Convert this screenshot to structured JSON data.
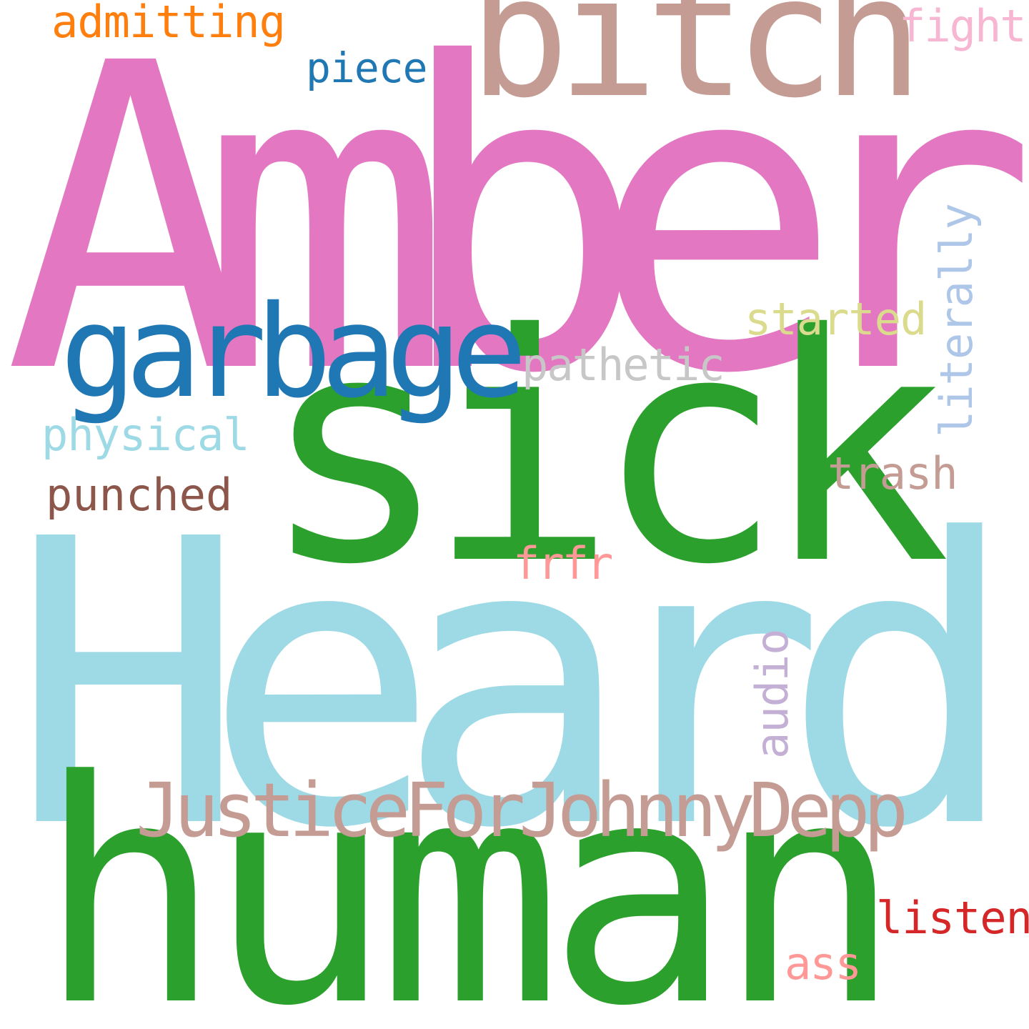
{
  "words": [
    {
      "id": "amber",
      "text": "Amber",
      "color": "#e377c2",
      "orientation": "horizontal"
    },
    {
      "id": "heard",
      "text": "Heard",
      "color": "#9edae5",
      "orientation": "horizontal"
    },
    {
      "id": "human",
      "text": "human",
      "color": "#2ca02c",
      "orientation": "horizontal"
    },
    {
      "id": "sick",
      "text": "sick",
      "color": "#2ca02c",
      "orientation": "horizontal"
    },
    {
      "id": "bitch",
      "text": "bitch",
      "color": "#c49c94",
      "orientation": "horizontal"
    },
    {
      "id": "garbage",
      "text": "garbage",
      "color": "#1f77b4",
      "orientation": "horizontal"
    },
    {
      "id": "jfjd",
      "text": "JusticeForJohnnyDepp",
      "color": "#c49c94",
      "orientation": "horizontal"
    },
    {
      "id": "admitting",
      "text": "admitting",
      "color": "#ff7f0e",
      "orientation": "horizontal"
    },
    {
      "id": "piece",
      "text": "piece",
      "color": "#1f77b4",
      "orientation": "horizontal"
    },
    {
      "id": "fight",
      "text": "fight",
      "color": "#f7b6d2",
      "orientation": "horizontal"
    },
    {
      "id": "started",
      "text": "started",
      "color": "#dbdb8d",
      "orientation": "horizontal"
    },
    {
      "id": "pathetic",
      "text": "pathetic",
      "color": "#c7c7c7",
      "orientation": "horizontal"
    },
    {
      "id": "physical",
      "text": "physical",
      "color": "#9edae5",
      "orientation": "horizontal"
    },
    {
      "id": "punched",
      "text": "punched",
      "color": "#8c564b",
      "orientation": "horizontal"
    },
    {
      "id": "trash",
      "text": "trash",
      "color": "#c49c94",
      "orientation": "horizontal"
    },
    {
      "id": "frfr",
      "text": "frfr",
      "color": "#ff9896",
      "orientation": "horizontal"
    },
    {
      "id": "listen",
      "text": "listen",
      "color": "#d62728",
      "orientation": "horizontal"
    },
    {
      "id": "ass",
      "text": "ass",
      "color": "#ff9896",
      "orientation": "horizontal"
    },
    {
      "id": "literally",
      "text": "literally",
      "color": "#aec7e8",
      "orientation": "vertical"
    },
    {
      "id": "audio",
      "text": "audio",
      "color": "#c5b0d5",
      "orientation": "vertical"
    }
  ]
}
